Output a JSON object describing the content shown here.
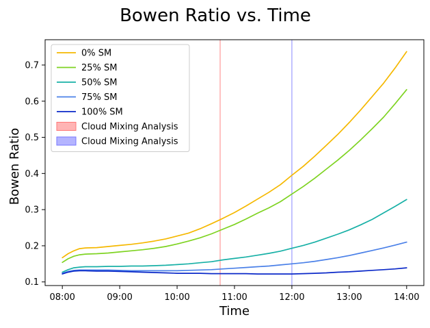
{
  "chart_data": {
    "type": "line",
    "title": "Bowen Ratio vs. Time",
    "xlabel": "Time",
    "ylabel": "Bowen Ratio",
    "x_tick_labels": [
      "08:00",
      "09:00",
      "10:00",
      "11:00",
      "12:00",
      "13:00",
      "14:00"
    ],
    "x_ticks_hours": [
      8,
      9,
      10,
      11,
      12,
      13,
      14
    ],
    "xlim": [
      7.7,
      14.3
    ],
    "y_ticks": [
      0.1,
      0.2,
      0.3,
      0.4,
      0.5,
      0.6,
      0.7
    ],
    "ylim": [
      0.09,
      0.77
    ],
    "grid": false,
    "legend_location": "upper-left",
    "series": [
      {
        "name": "0% SM",
        "color": "#f5b800",
        "points": [
          [
            8.0,
            0.167
          ],
          [
            8.1,
            0.178
          ],
          [
            8.2,
            0.186
          ],
          [
            8.3,
            0.192
          ],
          [
            8.4,
            0.194
          ],
          [
            8.6,
            0.195
          ],
          [
            8.8,
            0.198
          ],
          [
            9.0,
            0.201
          ],
          [
            9.2,
            0.204
          ],
          [
            9.4,
            0.208
          ],
          [
            9.6,
            0.213
          ],
          [
            9.8,
            0.219
          ],
          [
            10.0,
            0.227
          ],
          [
            10.2,
            0.235
          ],
          [
            10.4,
            0.247
          ],
          [
            10.6,
            0.261
          ],
          [
            10.8,
            0.276
          ],
          [
            11.0,
            0.292
          ],
          [
            11.2,
            0.31
          ],
          [
            11.4,
            0.329
          ],
          [
            11.6,
            0.348
          ],
          [
            11.8,
            0.369
          ],
          [
            12.0,
            0.395
          ],
          [
            12.2,
            0.42
          ],
          [
            12.4,
            0.448
          ],
          [
            12.6,
            0.478
          ],
          [
            12.8,
            0.508
          ],
          [
            13.0,
            0.541
          ],
          [
            13.2,
            0.576
          ],
          [
            13.4,
            0.613
          ],
          [
            13.6,
            0.65
          ],
          [
            13.8,
            0.692
          ],
          [
            14.0,
            0.737
          ]
        ]
      },
      {
        "name": "25% SM",
        "color": "#7ed321",
        "points": [
          [
            8.0,
            0.154
          ],
          [
            8.1,
            0.164
          ],
          [
            8.2,
            0.171
          ],
          [
            8.3,
            0.175
          ],
          [
            8.4,
            0.177
          ],
          [
            8.6,
            0.178
          ],
          [
            8.8,
            0.18
          ],
          [
            9.0,
            0.183
          ],
          [
            9.2,
            0.186
          ],
          [
            9.4,
            0.189
          ],
          [
            9.6,
            0.193
          ],
          [
            9.8,
            0.198
          ],
          [
            10.0,
            0.205
          ],
          [
            10.2,
            0.213
          ],
          [
            10.4,
            0.222
          ],
          [
            10.6,
            0.233
          ],
          [
            10.8,
            0.246
          ],
          [
            11.0,
            0.259
          ],
          [
            11.2,
            0.274
          ],
          [
            11.4,
            0.29
          ],
          [
            11.6,
            0.305
          ],
          [
            11.8,
            0.322
          ],
          [
            12.0,
            0.343
          ],
          [
            12.2,
            0.364
          ],
          [
            12.4,
            0.387
          ],
          [
            12.6,
            0.412
          ],
          [
            12.8,
            0.437
          ],
          [
            13.0,
            0.464
          ],
          [
            13.2,
            0.493
          ],
          [
            13.4,
            0.524
          ],
          [
            13.6,
            0.556
          ],
          [
            13.8,
            0.593
          ],
          [
            14.0,
            0.632
          ]
        ]
      },
      {
        "name": "50% SM",
        "color": "#17b0a6",
        "points": [
          [
            8.0,
            0.127
          ],
          [
            8.1,
            0.134
          ],
          [
            8.2,
            0.139
          ],
          [
            8.3,
            0.141
          ],
          [
            8.4,
            0.142
          ],
          [
            8.6,
            0.142
          ],
          [
            8.8,
            0.143
          ],
          [
            9.0,
            0.143
          ],
          [
            9.2,
            0.144
          ],
          [
            9.4,
            0.144
          ],
          [
            9.6,
            0.145
          ],
          [
            9.8,
            0.146
          ],
          [
            10.0,
            0.148
          ],
          [
            10.2,
            0.15
          ],
          [
            10.4,
            0.153
          ],
          [
            10.6,
            0.156
          ],
          [
            10.8,
            0.161
          ],
          [
            11.0,
            0.165
          ],
          [
            11.2,
            0.169
          ],
          [
            11.4,
            0.174
          ],
          [
            11.6,
            0.179
          ],
          [
            11.8,
            0.185
          ],
          [
            12.0,
            0.193
          ],
          [
            12.2,
            0.201
          ],
          [
            12.4,
            0.21
          ],
          [
            12.6,
            0.221
          ],
          [
            12.8,
            0.232
          ],
          [
            13.0,
            0.244
          ],
          [
            13.2,
            0.258
          ],
          [
            13.4,
            0.273
          ],
          [
            13.6,
            0.291
          ],
          [
            13.8,
            0.309
          ],
          [
            14.0,
            0.328
          ]
        ]
      },
      {
        "name": "75% SM",
        "color": "#4a80e8",
        "points": [
          [
            8.0,
            0.124
          ],
          [
            8.1,
            0.129
          ],
          [
            8.2,
            0.132
          ],
          [
            8.3,
            0.133
          ],
          [
            8.4,
            0.133
          ],
          [
            8.6,
            0.133
          ],
          [
            8.8,
            0.133
          ],
          [
            9.0,
            0.132
          ],
          [
            9.2,
            0.131
          ],
          [
            9.4,
            0.131
          ],
          [
            9.6,
            0.131
          ],
          [
            9.8,
            0.131
          ],
          [
            10.0,
            0.131
          ],
          [
            10.2,
            0.132
          ],
          [
            10.4,
            0.133
          ],
          [
            10.6,
            0.134
          ],
          [
            10.8,
            0.136
          ],
          [
            11.0,
            0.138
          ],
          [
            11.2,
            0.14
          ],
          [
            11.4,
            0.142
          ],
          [
            11.6,
            0.144
          ],
          [
            11.8,
            0.147
          ],
          [
            12.0,
            0.15
          ],
          [
            12.2,
            0.153
          ],
          [
            12.4,
            0.157
          ],
          [
            12.6,
            0.162
          ],
          [
            12.8,
            0.167
          ],
          [
            13.0,
            0.173
          ],
          [
            13.2,
            0.18
          ],
          [
            13.4,
            0.187
          ],
          [
            13.6,
            0.194
          ],
          [
            13.8,
            0.202
          ],
          [
            14.0,
            0.21
          ]
        ]
      },
      {
        "name": "100% SM",
        "color": "#0a28c8",
        "points": [
          [
            8.0,
            0.122
          ],
          [
            8.1,
            0.127
          ],
          [
            8.2,
            0.13
          ],
          [
            8.3,
            0.131
          ],
          [
            8.4,
            0.131
          ],
          [
            8.6,
            0.13
          ],
          [
            8.8,
            0.13
          ],
          [
            9.0,
            0.129
          ],
          [
            9.2,
            0.128
          ],
          [
            9.4,
            0.127
          ],
          [
            9.6,
            0.126
          ],
          [
            9.8,
            0.125
          ],
          [
            10.0,
            0.124
          ],
          [
            10.2,
            0.124
          ],
          [
            10.4,
            0.124
          ],
          [
            10.6,
            0.123
          ],
          [
            10.8,
            0.123
          ],
          [
            11.0,
            0.123
          ],
          [
            11.2,
            0.123
          ],
          [
            11.4,
            0.122
          ],
          [
            11.6,
            0.122
          ],
          [
            11.8,
            0.122
          ],
          [
            12.0,
            0.122
          ],
          [
            12.2,
            0.123
          ],
          [
            12.4,
            0.124
          ],
          [
            12.6,
            0.125
          ],
          [
            12.8,
            0.127
          ],
          [
            13.0,
            0.128
          ],
          [
            13.2,
            0.13
          ],
          [
            13.4,
            0.132
          ],
          [
            13.6,
            0.134
          ],
          [
            13.8,
            0.136
          ],
          [
            14.0,
            0.139
          ]
        ]
      }
    ],
    "vlines": [
      {
        "name": "Cloud Mixing Analysis",
        "color": "#ff7777",
        "x": 10.75
      },
      {
        "name": "Cloud Mixing Analysis",
        "color": "#7777ff",
        "x": 12.0
      }
    ]
  }
}
